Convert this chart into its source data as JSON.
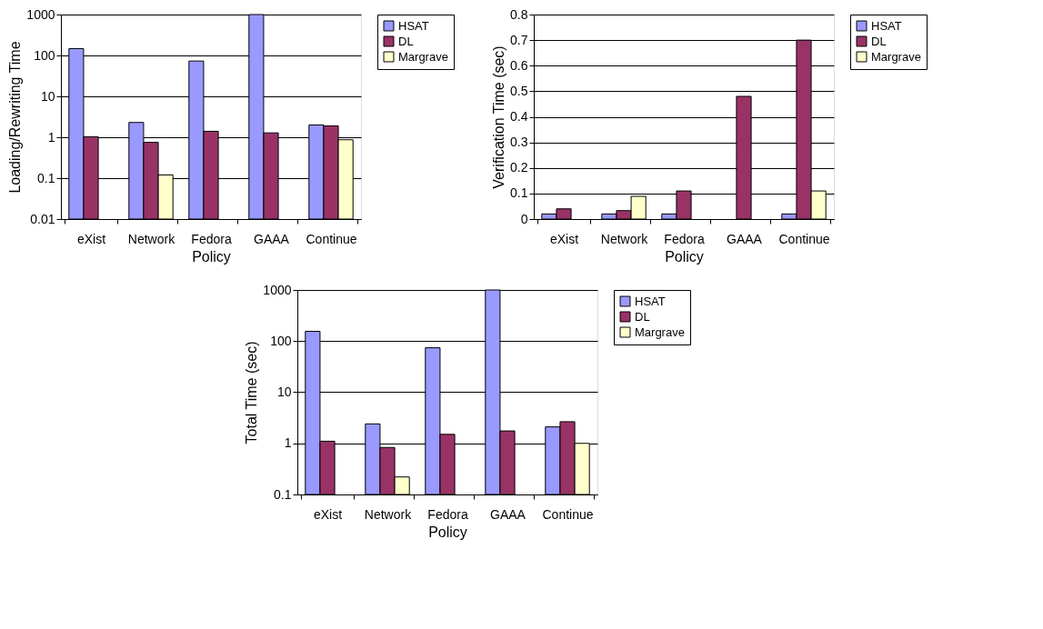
{
  "chart_data": [
    {
      "type": "bar",
      "xlabel": "Policy",
      "ylabel": "Loading/Rewriting Time",
      "categories": [
        "eXist",
        "Network",
        "Fedora",
        "GAAA",
        "Continue"
      ],
      "log": true,
      "ylim": [
        0.01,
        1000
      ],
      "yticks": [
        0.01,
        0.1,
        1,
        10,
        100,
        1000
      ],
      "grid": "y",
      "legend": "right",
      "series": [
        {
          "name": "HSAT",
          "color": "#9999ff",
          "values": [
            147,
            2.3,
            73,
            1000,
            2.0
          ]
        },
        {
          "name": "DL",
          "color": "#993366",
          "values": [
            1.03,
            0.75,
            1.4,
            1.28,
            1.9
          ]
        },
        {
          "name": "Margrave",
          "color": "#ffffcc",
          "values": [
            null,
            0.12,
            null,
            null,
            0.87
          ]
        }
      ]
    },
    {
      "type": "bar",
      "xlabel": "Policy",
      "ylabel": "Verification Time (sec)",
      "categories": [
        "eXist",
        "Network",
        "Fedora",
        "GAAA",
        "Continue"
      ],
      "ylim": [
        0,
        0.8
      ],
      "yticks": [
        0,
        0.1,
        0.2,
        0.3,
        0.4,
        0.5,
        0.6,
        0.7,
        0.8
      ],
      "grid": "y",
      "legend": "right",
      "series": [
        {
          "name": "HSAT",
          "color": "#9999ff",
          "values": [
            0.02,
            0.02,
            0.02,
            null,
            0.02
          ]
        },
        {
          "name": "DL",
          "color": "#993366",
          "values": [
            0.04,
            0.033,
            0.11,
            0.48,
            0.7
          ]
        },
        {
          "name": "Margrave",
          "color": "#ffffcc",
          "values": [
            null,
            0.089,
            null,
            null,
            0.11
          ]
        }
      ]
    },
    {
      "type": "bar",
      "xlabel": "Policy",
      "ylabel": "Total Time (sec)",
      "categories": [
        "eXist",
        "Network",
        "Fedora",
        "GAAA",
        "Continue"
      ],
      "log": true,
      "ylim": [
        0.1,
        1000
      ],
      "yticks": [
        0.1,
        1,
        10,
        100,
        1000
      ],
      "grid": "y",
      "legend": "right",
      "series": [
        {
          "name": "HSAT",
          "color": "#9999ff",
          "values": [
            155,
            2.4,
            74,
            1000,
            2.1
          ]
        },
        {
          "name": "DL",
          "color": "#993366",
          "values": [
            1.1,
            0.83,
            1.5,
            1.75,
            2.65
          ]
        },
        {
          "name": "Margrave",
          "color": "#ffffcc",
          "values": [
            null,
            0.22,
            null,
            null,
            1.0
          ]
        }
      ]
    }
  ]
}
